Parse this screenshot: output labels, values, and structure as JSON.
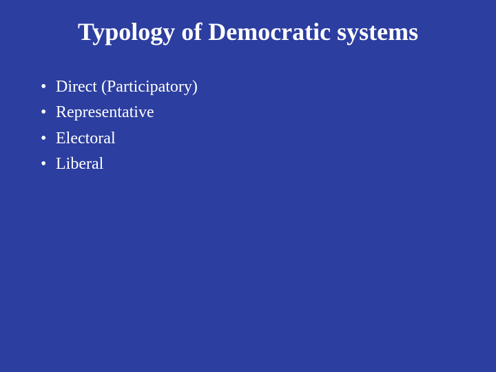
{
  "slide": {
    "background_color": "#2c3e9f",
    "text_color": "#ffffff",
    "title": "Typology of Democratic systems",
    "title_fontsize": 36,
    "title_fontweight": "bold",
    "bullet_fontsize": 24,
    "bullets": [
      "Direct (Participatory)",
      "Representative",
      "Electoral",
      "Liberal"
    ]
  }
}
